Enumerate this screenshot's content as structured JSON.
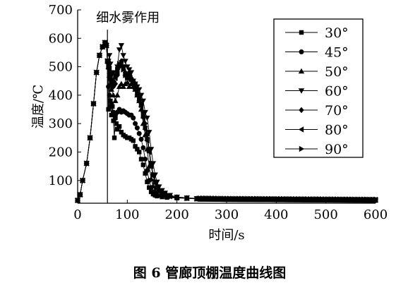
{
  "caption": "图 6   管廊顶棚温度曲线图",
  "chart_data": {
    "type": "line",
    "xlabel": "时间/s",
    "ylabel": "温度/℃",
    "xlim": [
      0,
      600
    ],
    "ylim": [
      20,
      700
    ],
    "xticks": [
      0,
      100,
      200,
      300,
      400,
      500,
      600
    ],
    "yticks": [
      100,
      200,
      300,
      400,
      500,
      600,
      700
    ],
    "grid": false,
    "legend_position": "top-right",
    "annotation": {
      "text": "细水雾作用",
      "x": 60
    },
    "line_color": "#000000",
    "rise": [
      [
        0,
        30
      ],
      [
        5,
        50
      ],
      [
        10,
        100
      ],
      [
        18,
        160
      ],
      [
        25,
        250
      ],
      [
        32,
        370
      ],
      [
        38,
        480
      ],
      [
        44,
        540
      ],
      [
        50,
        570
      ],
      [
        55,
        585
      ],
      [
        58,
        575
      ],
      [
        60,
        520
      ]
    ],
    "tail": [
      [
        260,
        35
      ],
      [
        300,
        34
      ],
      [
        400,
        33
      ],
      [
        500,
        32
      ],
      [
        600,
        31
      ]
    ],
    "series": [
      {
        "name": "30°",
        "marker": "square",
        "points": [
          [
            62,
            350
          ],
          [
            64,
            470
          ],
          [
            66,
            380
          ],
          [
            68,
            330
          ],
          [
            70,
            360
          ],
          [
            72,
            310
          ],
          [
            74,
            250
          ],
          [
            76,
            320
          ],
          [
            78,
            300
          ],
          [
            80,
            280
          ],
          [
            84,
            290
          ],
          [
            88,
            270
          ],
          [
            92,
            260
          ],
          [
            96,
            255
          ],
          [
            100,
            250
          ],
          [
            104,
            250
          ],
          [
            108,
            245
          ],
          [
            112,
            240
          ],
          [
            116,
            220
          ],
          [
            120,
            210
          ],
          [
            124,
            200
          ],
          [
            128,
            175
          ],
          [
            132,
            155
          ],
          [
            136,
            125
          ],
          [
            140,
            95
          ],
          [
            144,
            75
          ],
          [
            148,
            60
          ],
          [
            152,
            52
          ],
          [
            156,
            48
          ],
          [
            160,
            45
          ],
          [
            170,
            42
          ],
          [
            180,
            40
          ],
          [
            200,
            38
          ],
          [
            220,
            37
          ],
          [
            240,
            36
          ]
        ]
      },
      {
        "name": "45°",
        "marker": "circle",
        "points": [
          [
            62,
            430
          ],
          [
            64,
            400
          ],
          [
            66,
            360
          ],
          [
            68,
            370
          ],
          [
            72,
            340
          ],
          [
            76,
            330
          ],
          [
            80,
            340
          ],
          [
            84,
            350
          ],
          [
            88,
            340
          ],
          [
            92,
            345
          ],
          [
            96,
            340
          ],
          [
            100,
            335
          ],
          [
            104,
            330
          ],
          [
            108,
            330
          ],
          [
            112,
            320
          ],
          [
            116,
            300
          ],
          [
            120,
            285
          ],
          [
            124,
            265
          ],
          [
            128,
            245
          ],
          [
            132,
            215
          ],
          [
            136,
            175
          ],
          [
            140,
            135
          ],
          [
            144,
            100
          ],
          [
            148,
            75
          ],
          [
            152,
            60
          ],
          [
            156,
            52
          ],
          [
            160,
            48
          ],
          [
            170,
            44
          ],
          [
            180,
            42
          ],
          [
            200,
            40
          ],
          [
            220,
            38
          ],
          [
            240,
            36
          ]
        ]
      },
      {
        "name": "50°",
        "marker": "triangle-up",
        "points": [
          [
            62,
            500
          ],
          [
            64,
            470
          ],
          [
            66,
            440
          ],
          [
            68,
            420
          ],
          [
            72,
            400
          ],
          [
            76,
            380
          ],
          [
            80,
            400
          ],
          [
            84,
            430
          ],
          [
            88,
            440
          ],
          [
            92,
            430
          ],
          [
            96,
            440
          ],
          [
            100,
            445
          ],
          [
            104,
            430
          ],
          [
            108,
            440
          ],
          [
            112,
            430
          ],
          [
            116,
            420
          ],
          [
            120,
            400
          ],
          [
            124,
            380
          ],
          [
            128,
            350
          ],
          [
            132,
            300
          ],
          [
            136,
            260
          ],
          [
            140,
            210
          ],
          [
            144,
            150
          ],
          [
            148,
            105
          ],
          [
            152,
            80
          ],
          [
            156,
            65
          ],
          [
            160,
            55
          ],
          [
            170,
            48
          ],
          [
            180,
            44
          ],
          [
            200,
            41
          ],
          [
            220,
            38
          ],
          [
            240,
            36
          ]
        ]
      },
      {
        "name": "60°",
        "marker": "triangle-down",
        "points": [
          [
            62,
            520
          ],
          [
            64,
            540
          ],
          [
            66,
            510
          ],
          [
            68,
            450
          ],
          [
            72,
            480
          ],
          [
            76,
            470
          ],
          [
            80,
            500
          ],
          [
            84,
            560
          ],
          [
            88,
            575
          ],
          [
            92,
            540
          ],
          [
            96,
            520
          ],
          [
            100,
            500
          ],
          [
            104,
            490
          ],
          [
            108,
            480
          ],
          [
            112,
            450
          ],
          [
            116,
            440
          ],
          [
            120,
            430
          ],
          [
            124,
            420
          ],
          [
            128,
            400
          ],
          [
            132,
            380
          ],
          [
            136,
            340
          ],
          [
            140,
            320
          ],
          [
            144,
            270
          ],
          [
            148,
            210
          ],
          [
            152,
            160
          ],
          [
            156,
            120
          ],
          [
            160,
            95
          ],
          [
            164,
            78
          ],
          [
            170,
            65
          ],
          [
            176,
            56
          ],
          [
            186,
            48
          ],
          [
            200,
            42
          ],
          [
            220,
            39
          ],
          [
            240,
            37
          ]
        ]
      },
      {
        "name": "70°",
        "marker": "diamond",
        "points": [
          [
            62,
            520
          ],
          [
            64,
            500
          ],
          [
            66,
            470
          ],
          [
            68,
            440
          ],
          [
            72,
            430
          ],
          [
            76,
            440
          ],
          [
            80,
            470
          ],
          [
            84,
            500
          ],
          [
            88,
            520
          ],
          [
            92,
            500
          ],
          [
            96,
            480
          ],
          [
            100,
            470
          ],
          [
            104,
            480
          ],
          [
            108,
            460
          ],
          [
            112,
            450
          ],
          [
            116,
            440
          ],
          [
            120,
            420
          ],
          [
            124,
            400
          ],
          [
            128,
            370
          ],
          [
            132,
            340
          ],
          [
            136,
            300
          ],
          [
            140,
            260
          ],
          [
            144,
            210
          ],
          [
            148,
            160
          ],
          [
            152,
            120
          ],
          [
            156,
            95
          ],
          [
            160,
            78
          ],
          [
            164,
            65
          ],
          [
            170,
            56
          ],
          [
            176,
            50
          ],
          [
            186,
            45
          ],
          [
            200,
            41
          ],
          [
            220,
            38
          ],
          [
            240,
            36
          ]
        ]
      },
      {
        "name": "80°",
        "marker": "triangle-left",
        "points": [
          [
            62,
            510
          ],
          [
            64,
            490
          ],
          [
            66,
            470
          ],
          [
            68,
            450
          ],
          [
            72,
            440
          ],
          [
            76,
            460
          ],
          [
            80,
            480
          ],
          [
            84,
            510
          ],
          [
            88,
            520
          ],
          [
            92,
            500
          ],
          [
            96,
            470
          ],
          [
            100,
            460
          ],
          [
            104,
            470
          ],
          [
            108,
            450
          ],
          [
            112,
            440
          ],
          [
            116,
            420
          ],
          [
            120,
            400
          ],
          [
            124,
            380
          ],
          [
            128,
            360
          ],
          [
            132,
            320
          ],
          [
            136,
            280
          ],
          [
            140,
            240
          ],
          [
            144,
            200
          ],
          [
            148,
            150
          ],
          [
            152,
            115
          ],
          [
            156,
            90
          ],
          [
            160,
            72
          ],
          [
            164,
            62
          ],
          [
            170,
            54
          ],
          [
            176,
            49
          ],
          [
            186,
            44
          ],
          [
            200,
            40
          ],
          [
            220,
            38
          ],
          [
            240,
            36
          ]
        ]
      },
      {
        "name": "90°",
        "marker": "triangle-right",
        "points": [
          [
            62,
            500
          ],
          [
            64,
            480
          ],
          [
            66,
            460
          ],
          [
            68,
            440
          ],
          [
            72,
            450
          ],
          [
            76,
            470
          ],
          [
            80,
            490
          ],
          [
            84,
            510
          ],
          [
            88,
            505
          ],
          [
            92,
            490
          ],
          [
            96,
            470
          ],
          [
            100,
            460
          ],
          [
            104,
            465
          ],
          [
            108,
            455
          ],
          [
            112,
            445
          ],
          [
            116,
            430
          ],
          [
            120,
            410
          ],
          [
            124,
            390
          ],
          [
            128,
            365
          ],
          [
            132,
            330
          ],
          [
            136,
            290
          ],
          [
            140,
            250
          ],
          [
            144,
            205
          ],
          [
            148,
            160
          ],
          [
            152,
            120
          ],
          [
            156,
            95
          ],
          [
            160,
            76
          ],
          [
            164,
            64
          ],
          [
            170,
            55
          ],
          [
            176,
            49
          ],
          [
            186,
            44
          ],
          [
            200,
            40
          ],
          [
            220,
            37
          ],
          [
            240,
            35
          ]
        ]
      }
    ]
  }
}
